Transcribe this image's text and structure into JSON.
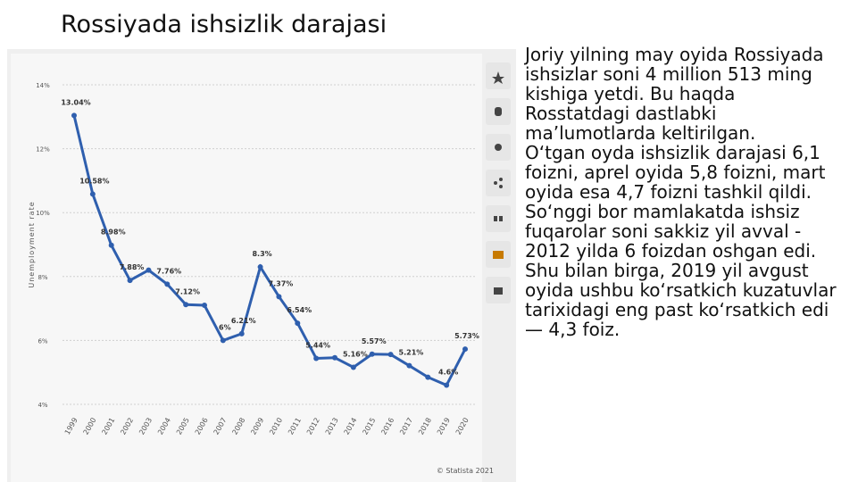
{
  "slide": {
    "title": "Rossiyada ishsizlik darajasi",
    "paragraphs": [
      "Joriy yilning may oyida Rossiyada ishsizlar soni 4 million 513 ming kishiga yetdi. Bu haqda Rosstatdagi dastlabki ma’lumotlarda keltirilgan.",
      "O‘tgan oyda ishsizlik darajasi 6,1 foizni, aprel oyida 5,8 foizni, mart oyida esa 4,7 foizni tashkil qildi.",
      "So‘nggi bor mamlakatda ishsiz fuqarolar soni sakkiz yil avval - 2012 yilda 6 foizdan oshgan edi.",
      "Shu bilan birga, 2019 yil avgust oyida ushbu ko‘rsatkich kuzatuvlar tarixidagi eng past ko‘rsatkich edi — 4,3 foiz."
    ]
  },
  "chart_data": {
    "type": "line",
    "ylabel": "Unemployment rate",
    "credit": "© Statista 2021",
    "categories": [
      "1999",
      "2000",
      "2001",
      "2002",
      "2003",
      "2004",
      "2005",
      "2006",
      "2007",
      "2008",
      "2009",
      "2010",
      "2011",
      "2012",
      "2013",
      "2014",
      "2015",
      "2016",
      "2017",
      "2018",
      "2019",
      "2020"
    ],
    "values": [
      13.04,
      10.58,
      8.98,
      7.88,
      8.2,
      7.76,
      7.12,
      7.1,
      6,
      6.21,
      8.3,
      7.37,
      6.54,
      5.44,
      5.46,
      5.16,
      5.57,
      5.56,
      5.21,
      4.85,
      4.6,
      5.73
    ],
    "value_labels": [
      "13.04%",
      "10.58%",
      "8.98%",
      "7.88%",
      null,
      "7.76%",
      "7.12%",
      null,
      "6%",
      "6.21%",
      "8.3%",
      "7.37%",
      "6.54%",
      "5.44%",
      null,
      "5.16%",
      "5.57%",
      null,
      "5.21%",
      null,
      "4.6%",
      "5.73%"
    ],
    "color": "#2f5fae",
    "ylim": [
      4,
      14
    ],
    "yticks": [
      {
        "value": 4,
        "label": "4%"
      },
      {
        "value": 6,
        "label": "6%"
      },
      {
        "value": 8,
        "label": "8%"
      },
      {
        "value": 10,
        "label": "10%"
      },
      {
        "value": 12,
        "label": "12%"
      },
      {
        "value": 14,
        "label": "14%"
      }
    ],
    "grid": true
  }
}
